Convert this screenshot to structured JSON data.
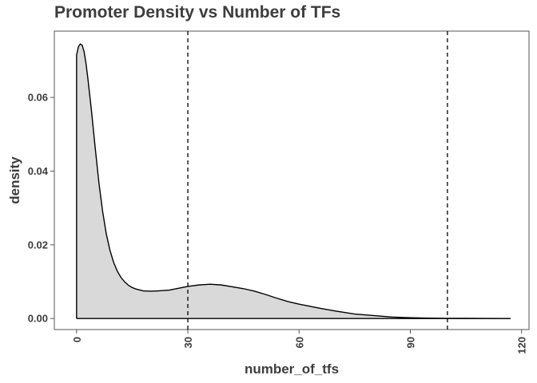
{
  "chart_data": {
    "type": "area",
    "title": "Promoter Density vs Number of TFs",
    "xlabel": "number_of_tfs",
    "ylabel": "density",
    "xlim": [
      -6,
      122
    ],
    "ylim": [
      -0.003,
      0.078
    ],
    "x_ticks": [
      0,
      30,
      60,
      90,
      120
    ],
    "y_ticks": [
      0.0,
      0.02,
      0.04,
      0.06
    ],
    "x_tick_labels": [
      "0",
      "30",
      "60",
      "90",
      "120"
    ],
    "y_tick_labels": [
      "0.00",
      "0.02",
      "0.04",
      "0.06"
    ],
    "grid": false,
    "legend": "none",
    "reference_lines_x": [
      30,
      100
    ],
    "fill_color": "#d9d9d9",
    "line_color": "#000000",
    "series": [
      {
        "x": [
          0,
          0.5,
          1,
          1.5,
          2,
          2.5,
          3,
          4,
          5,
          6,
          7,
          8,
          9,
          10,
          11,
          12,
          13,
          14,
          15,
          16,
          18,
          20,
          22,
          25,
          28,
          30,
          33,
          36,
          39,
          42,
          45,
          48,
          51,
          54,
          57,
          60,
          63,
          66,
          70,
          75,
          80,
          85,
          90,
          95,
          100,
          105,
          110,
          117
        ],
        "y": [
          0.0715,
          0.0738,
          0.0745,
          0.0742,
          0.0725,
          0.0695,
          0.0655,
          0.0565,
          0.0465,
          0.037,
          0.0292,
          0.023,
          0.0185,
          0.0152,
          0.0128,
          0.0111,
          0.0099,
          0.009,
          0.0084,
          0.008,
          0.0075,
          0.0074,
          0.0075,
          0.0077,
          0.0083,
          0.0087,
          0.0091,
          0.0093,
          0.0091,
          0.0086,
          0.0081,
          0.0074,
          0.0065,
          0.0055,
          0.0046,
          0.0039,
          0.0033,
          0.0027,
          0.002,
          0.0012,
          0.0008,
          0.0004,
          0.0002,
          0.0001,
          5e-05,
          3e-05,
          2e-05,
          0.0
        ]
      }
    ]
  }
}
